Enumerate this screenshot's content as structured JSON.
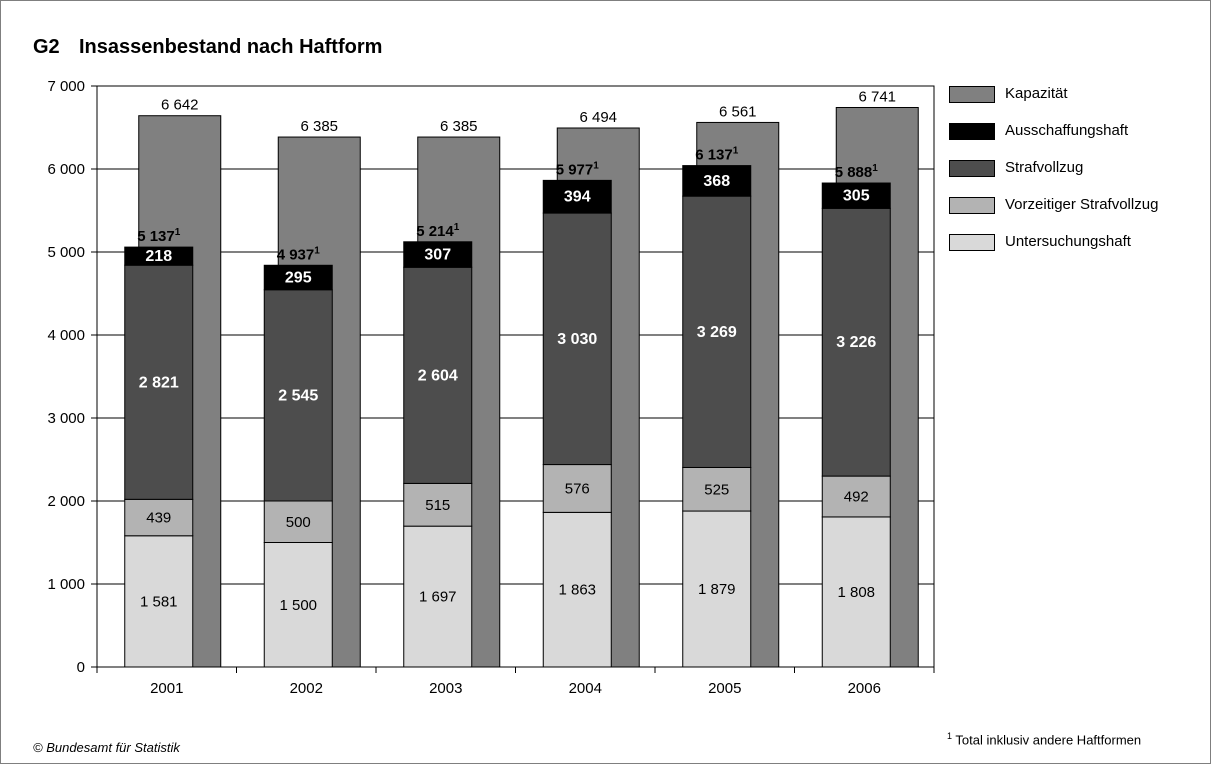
{
  "title": {
    "code": "G2",
    "text": "Insassenbestand nach Haftform"
  },
  "source": "© Bundesamt für Statistik",
  "footnote": {
    "marker": "1",
    "text": "Total inklusiv andere Haftformen"
  },
  "colors": {
    "Kapazität": "#808080",
    "Ausschaffungshaft": "#000000",
    "Strafvollzug": "#4d4d4d",
    "Vorzeitiger Strafvollzug": "#b3b3b3",
    "Untersuchungshaft": "#d9d9d9"
  },
  "chart_data": {
    "type": "bar",
    "stacked": true,
    "categories": [
      "2001",
      "2002",
      "2003",
      "2004",
      "2005",
      "2006"
    ],
    "ylim": [
      0,
      7000
    ],
    "yticks": [
      0,
      1000,
      2000,
      3000,
      4000,
      5000,
      6000,
      7000
    ],
    "ytick_labels": [
      "0",
      "1 000",
      "2 000",
      "3 000",
      "4 000",
      "5 000",
      "6 000",
      "7 000"
    ],
    "grid": true,
    "legend_position": "right",
    "capacity": {
      "name": "Kapazität",
      "values": [
        6642,
        6385,
        6385,
        6494,
        6561,
        6741
      ],
      "labels": [
        "6 642",
        "6 385",
        "6 385",
        "6 494",
        "6 561",
        "6 741"
      ]
    },
    "series": [
      {
        "name": "Untersuchungshaft",
        "values": [
          1581,
          1500,
          1697,
          1863,
          1879,
          1808
        ],
        "labels": [
          "1 581",
          "1 500",
          "1 697",
          "1 863",
          "1 879",
          "1 808"
        ]
      },
      {
        "name": "Vorzeitiger Strafvollzug",
        "values": [
          439,
          500,
          515,
          576,
          525,
          492
        ],
        "labels": [
          "439",
          "500",
          "515",
          "576",
          "525",
          "492"
        ]
      },
      {
        "name": "Strafvollzug",
        "values": [
          2821,
          2545,
          2604,
          3030,
          3269,
          3226
        ],
        "labels": [
          "2 821",
          "2 545",
          "2 604",
          "3 030",
          "3 269",
          "3 226"
        ]
      },
      {
        "name": "Ausschaffungshaft",
        "values": [
          218,
          295,
          307,
          394,
          368,
          305
        ],
        "labels": [
          "218",
          "295",
          "307",
          "394",
          "368",
          "305"
        ]
      }
    ],
    "totals": {
      "values": [
        5137,
        4937,
        5214,
        5977,
        6137,
        5888
      ],
      "labels": [
        "5 137",
        "4 937",
        "5 214",
        "5 977",
        "6 137",
        "5 888"
      ],
      "marker": "1"
    },
    "legend": [
      "Kapazität",
      "Ausschaffungshaft",
      "Strafvollzug",
      "Vorzeitiger Strafvollzug",
      "Untersuchungshaft"
    ]
  }
}
